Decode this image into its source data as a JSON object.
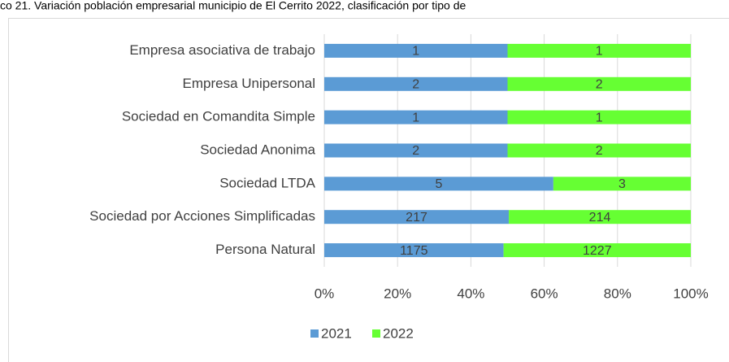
{
  "chart_data": {
    "type": "bar",
    "orientation": "horizontal",
    "stacked": "percent",
    "title": "co 21. Variación población empresarial municipio de El Cerrito 2022, clasificación por tipo de",
    "categories": [
      "Empresa asociativa de trabajo",
      "Empresa Unipersonal",
      "Sociedad en Comandita Simple",
      "Sociedad Anonima",
      "Sociedad LTDA",
      "Sociedad por Acciones Simplificadas",
      "Persona Natural"
    ],
    "series": [
      {
        "name": "2021",
        "color": "#5b9bd5",
        "values": [
          1,
          2,
          1,
          2,
          5,
          217,
          1175
        ]
      },
      {
        "name": "2022",
        "color": "#66ff33",
        "values": [
          1,
          2,
          1,
          2,
          3,
          214,
          1227
        ]
      }
    ],
    "xlim": [
      0,
      100
    ],
    "xticks": [
      {
        "value": 0,
        "label": "0%"
      },
      {
        "value": 20,
        "label": "20%"
      },
      {
        "value": 40,
        "label": "40%"
      },
      {
        "value": 60,
        "label": "60%"
      },
      {
        "value": 80,
        "label": "80%"
      },
      {
        "value": 100,
        "label": "100%"
      }
    ],
    "grid": true,
    "legend": "bottom"
  }
}
